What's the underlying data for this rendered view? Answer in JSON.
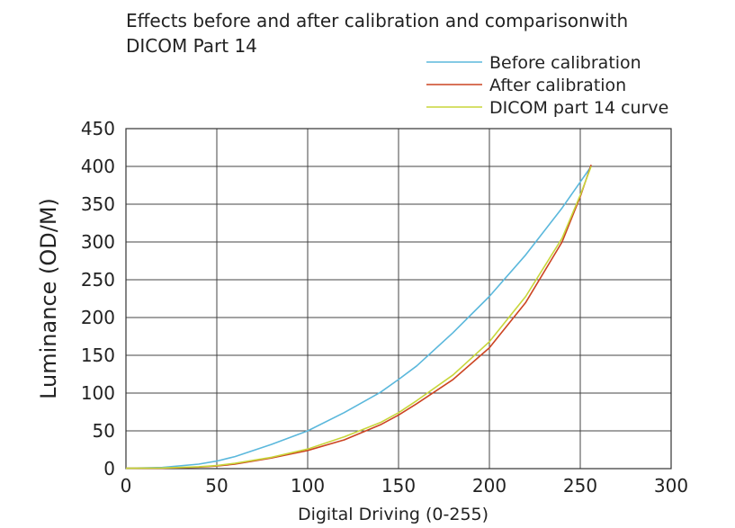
{
  "chart_data": {
    "type": "line",
    "title_lines": [
      "Effects before and after calibration and comparisonwith",
      "DICOM Part 14"
    ],
    "xlabel": "Digital Driving (0-255)",
    "ylabel": "Luminance (OD/M)",
    "xlim": [
      0,
      300
    ],
    "ylim": [
      0,
      450
    ],
    "xticks": [
      0,
      50,
      100,
      150,
      200,
      250,
      300
    ],
    "yticks": [
      0,
      50,
      100,
      150,
      200,
      250,
      300,
      350,
      400,
      450
    ],
    "grid": true,
    "legend_position": "top-right",
    "series": [
      {
        "name": "Before calibration",
        "color": "#5bb8dc",
        "x": [
          0,
          20,
          40,
          50,
          60,
          80,
          100,
          120,
          140,
          150,
          160,
          180,
          200,
          220,
          240,
          256
        ],
        "y": [
          0.5,
          1.5,
          6,
          10,
          16,
          32,
          50,
          74,
          101,
          118,
          136,
          180,
          228,
          283,
          345,
          400
        ]
      },
      {
        "name": "After calibration",
        "color": "#cc4422",
        "x": [
          0,
          20,
          40,
          50,
          60,
          80,
          100,
          120,
          140,
          150,
          160,
          180,
          200,
          220,
          240,
          250,
          256
        ],
        "y": [
          0.5,
          0.5,
          2,
          3.5,
          6,
          14,
          24,
          38,
          58,
          71,
          86,
          118,
          160,
          220,
          300,
          360,
          402
        ]
      },
      {
        "name": "DICOM part 14 curve",
        "color": "#c8d63a",
        "x": [
          0,
          20,
          40,
          50,
          60,
          80,
          100,
          120,
          140,
          150,
          160,
          180,
          200,
          220,
          240,
          250,
          256
        ],
        "y": [
          0.5,
          0.8,
          2.5,
          4,
          7,
          15,
          26,
          42,
          61,
          74,
          90,
          124,
          168,
          228,
          305,
          362,
          400
        ]
      }
    ]
  }
}
